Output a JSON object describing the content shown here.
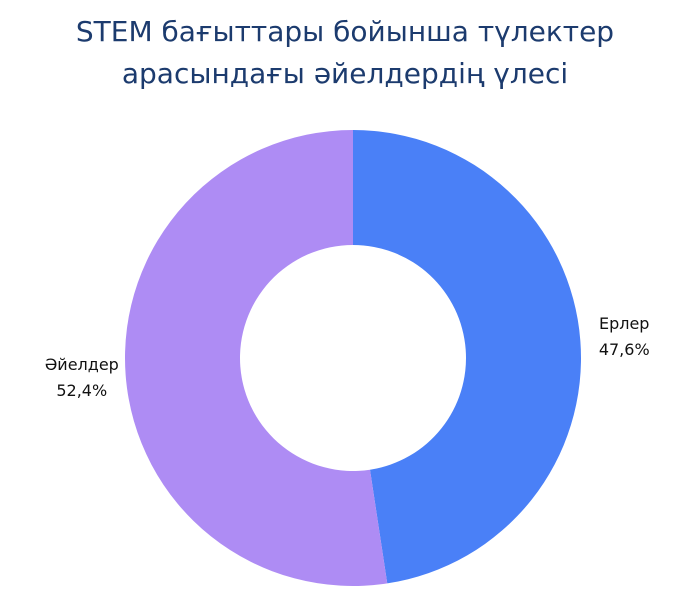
{
  "chart_data": {
    "type": "donut",
    "title": [
      "STEM бағыттары бойынша түлектер",
      "арасындағы әйелдердің үлесі"
    ],
    "categories": [
      "Ерлер",
      "Әйелдер"
    ],
    "values": [
      47.6,
      52.4
    ],
    "value_labels": [
      "47,6%",
      "52,4%"
    ],
    "colors": [
      "#4a80f7",
      "#ae8cf4"
    ]
  }
}
